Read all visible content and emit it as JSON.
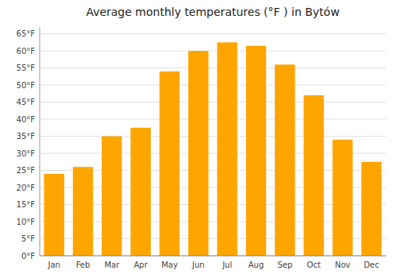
{
  "chart_data": {
    "type": "bar",
    "title": "Average monthly temperatures (°F ) in Bytów",
    "categories": [
      "Jan",
      "Feb",
      "Mar",
      "Apr",
      "May",
      "Jun",
      "Jul",
      "Aug",
      "Sep",
      "Oct",
      "Nov",
      "Dec"
    ],
    "values": [
      24.0,
      26.0,
      35.0,
      37.5,
      54.0,
      60.0,
      62.5,
      61.5,
      56.0,
      47.0,
      34.0,
      27.5
    ],
    "color": "#FFA500",
    "ylim": [
      0,
      67
    ],
    "yticks": [
      {
        "value": 0,
        "label": "0°F"
      },
      {
        "value": 5,
        "label": "5°F"
      },
      {
        "value": 10,
        "label": "10°F"
      },
      {
        "value": 15,
        "label": "15°F"
      },
      {
        "value": 20,
        "label": "20°F"
      },
      {
        "value": 25,
        "label": "25°F"
      },
      {
        "value": 30,
        "label": "30°F"
      },
      {
        "value": 35,
        "label": "35°F"
      },
      {
        "value": 40,
        "label": "40°F"
      },
      {
        "value": 45,
        "label": "45°F"
      },
      {
        "value": 50,
        "label": "50°F"
      },
      {
        "value": 55,
        "label": "55°F"
      },
      {
        "value": 60,
        "label": "60°F"
      },
      {
        "value": 65,
        "label": "65°F"
      }
    ],
    "grid": true
  }
}
